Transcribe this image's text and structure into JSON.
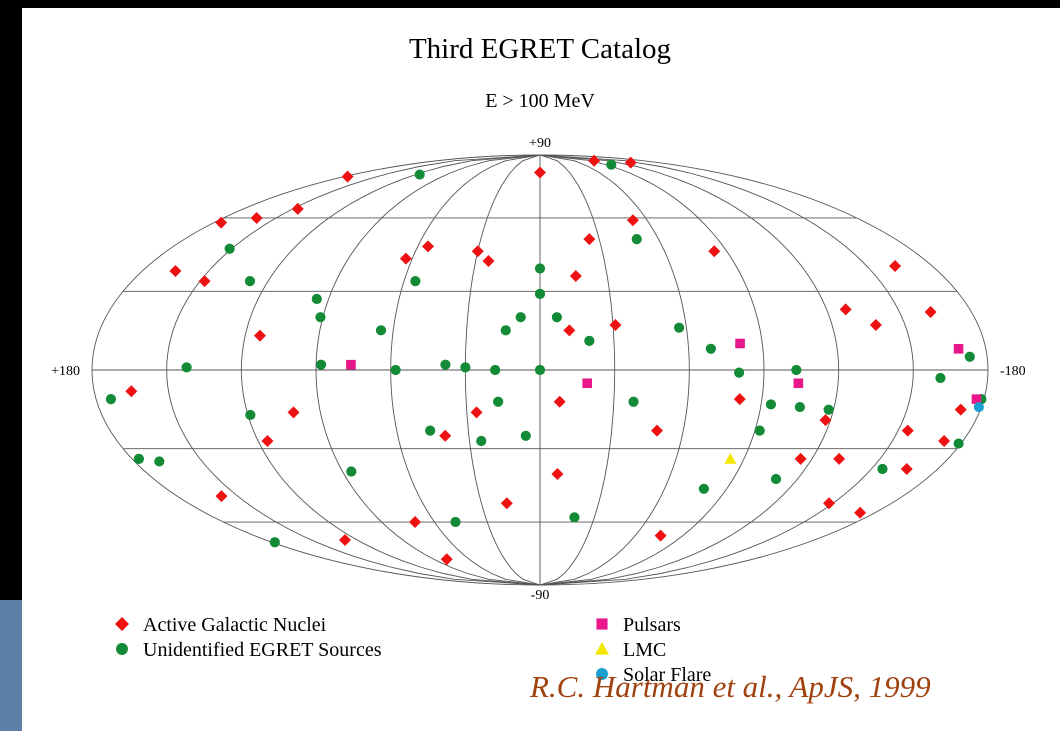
{
  "chart_data": {
    "type": "scatter",
    "title": "Third EGRET Catalog",
    "subtitle": "E > 100 MeV",
    "citation": "R.C. Hartman et al., ApJS, 1999",
    "xlim": [
      180,
      -180
    ],
    "ylim": [
      -90,
      90
    ],
    "xticks": [
      {
        "value": 180,
        "label": "+180"
      },
      -180
    ],
    "yticks": [
      {
        "value": 90,
        "label": "+90"
      },
      -90
    ],
    "series": [
      {
        "name": "Active Galactic Nuclei",
        "color": "#ee1111",
        "marker": "diamond",
        "x": [
          -138,
          -95,
          0,
          177,
          176,
          161,
          147,
          63,
          55,
          30,
          24,
          -25,
          -52,
          -84,
          -16,
          -12,
          -8,
          26,
          40,
          165,
          148,
          114,
          116,
          101,
          158,
          128,
          71,
          17,
          -8,
          -76,
          -49,
          -31,
          -115,
          -132,
          -148,
          -172,
          -128,
          -138,
          -154,
          -172,
          -172,
          -166,
          -163,
          -163,
          79,
          165,
          -81,
          -118
        ],
        "values": [
          86,
          87,
          81,
          79,
          58,
          60,
          64,
          43,
          48,
          46,
          42,
          51,
          59,
          46,
          36,
          15,
          -12,
          -16,
          -25,
          38,
          34,
          13,
          -27,
          -16,
          -49,
          -68,
          -60,
          -52,
          -40,
          -66,
          -23,
          17,
          -34,
          -34,
          -52,
          -56,
          23,
          17,
          -23,
          -27,
          -15,
          -38,
          40,
          22,
          -77,
          -8,
          -11,
          -19
        ]
      },
      {
        "name": "Unidentified EGRET Sources",
        "color": "#138a36",
        "marker": "circle",
        "x": [
          0,
          0,
          30,
          58,
          88,
          142,
          174,
          169,
          178,
          48,
          -19,
          6,
          46,
          86,
          95,
          128,
          151,
          -97,
          116,
          0,
          14,
          -7,
          -80,
          -103,
          -106,
          -118,
          -94,
          -49,
          -57,
          -69,
          -161,
          -173,
          -179,
          -179,
          -155,
          -110,
          -92,
          -38,
          17,
          91,
          177,
          55,
          -20,
          8,
          18,
          119,
          38,
          25,
          -79,
          65
        ],
        "values": [
          29,
          0,
          1,
          0,
          2,
          1,
          -11,
          -35,
          -69,
          -60,
          -58,
          -25,
          -23,
          -39,
          27,
          34,
          47,
          85,
          80,
          39,
          15,
          20,
          -1,
          0,
          -14,
          -15,
          -13,
          51,
          16,
          8,
          -3,
          5,
          -11,
          -28,
          -38,
          -42,
          -23,
          -12,
          -12,
          20,
          -34,
          34,
          11,
          20,
          0,
          -17,
          2,
          -27,
          -46,
          15
        ]
      },
      {
        "name": "Pulsars",
        "color": "#e8178a",
        "marker": "square",
        "x": [
          76,
          -81,
          -19,
          -104,
          -169,
          -177
        ],
        "values": [
          2,
          10,
          -5,
          -5,
          8,
          -11
        ]
      },
      {
        "name": "LMC",
        "color": "#f5e600",
        "marker": "triangle",
        "x": [
          -84
        ],
        "values": [
          -34
        ]
      },
      {
        "name": "Solar Flare",
        "color": "#1aa0d0",
        "marker": "circle",
        "x": [
          -179
        ],
        "values": [
          -14
        ]
      }
    ]
  }
}
